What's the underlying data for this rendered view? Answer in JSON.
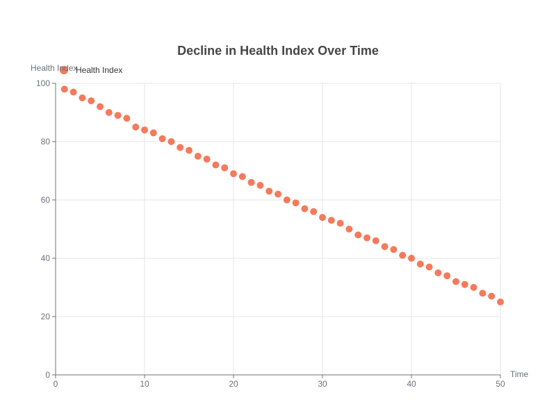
{
  "chart_data": {
    "type": "scatter",
    "title": "Decline in Health Index Over Time",
    "xlabel": "Time",
    "ylabel": "Health Index",
    "xlim": [
      0,
      50
    ],
    "ylim": [
      0,
      100
    ],
    "x_ticks": [
      0,
      10,
      20,
      30,
      40,
      50
    ],
    "y_ticks": [
      0,
      20,
      40,
      60,
      80,
      100
    ],
    "grid": true,
    "legend_position": "top-left",
    "colors": {
      "series": "#f47a5b",
      "grid": "#e6e6e6",
      "axis": "#6e7079"
    },
    "series": [
      {
        "name": "Health Index",
        "points": [
          [
            1,
            98
          ],
          [
            2,
            97
          ],
          [
            3,
            95
          ],
          [
            4,
            94
          ],
          [
            5,
            92
          ],
          [
            6,
            90
          ],
          [
            7,
            89
          ],
          [
            8,
            88
          ],
          [
            9,
            85
          ],
          [
            10,
            84
          ],
          [
            11,
            83
          ],
          [
            12,
            81
          ],
          [
            13,
            80
          ],
          [
            14,
            78
          ],
          [
            15,
            77
          ],
          [
            16,
            75
          ],
          [
            17,
            74
          ],
          [
            18,
            72
          ],
          [
            19,
            71
          ],
          [
            20,
            69
          ],
          [
            21,
            68
          ],
          [
            22,
            66
          ],
          [
            23,
            65
          ],
          [
            24,
            63
          ],
          [
            25,
            62
          ],
          [
            26,
            60
          ],
          [
            27,
            59
          ],
          [
            28,
            57
          ],
          [
            29,
            56
          ],
          [
            30,
            54
          ],
          [
            31,
            53
          ],
          [
            32,
            52
          ],
          [
            33,
            50
          ],
          [
            34,
            48
          ],
          [
            35,
            47
          ],
          [
            36,
            46
          ],
          [
            37,
            44
          ],
          [
            38,
            43
          ],
          [
            39,
            41
          ],
          [
            40,
            40
          ],
          [
            41,
            38
          ],
          [
            42,
            37
          ],
          [
            43,
            35
          ],
          [
            44,
            34
          ],
          [
            45,
            32
          ],
          [
            46,
            31
          ],
          [
            47,
            30
          ],
          [
            48,
            28
          ],
          [
            49,
            27
          ],
          [
            50,
            25
          ]
        ]
      }
    ]
  }
}
